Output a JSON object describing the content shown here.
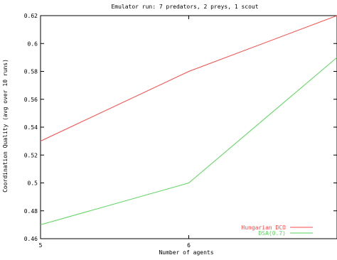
{
  "chart_data": {
    "type": "line",
    "title": "Emulator run: 7 predators, 2 preys, 1 scout",
    "xlabel": "Number of agents",
    "ylabel": "Coordination Quality (avg over 10 runs)",
    "x": [
      5,
      6,
      7
    ],
    "x_ticks": [
      5,
      6
    ],
    "xlim": [
      5,
      7
    ],
    "y_ticks": [
      0.46,
      0.48,
      0.5,
      0.52,
      0.54,
      0.56,
      0.58,
      0.6,
      0.62
    ],
    "y_tick_labels": [
      "0.46",
      "0.48",
      "0.5",
      "0.52",
      "0.54",
      "0.56",
      "0.58",
      "0.6",
      "0.62"
    ],
    "ylim": [
      0.46,
      0.62
    ],
    "grid": false,
    "legend_position": "bottom-right",
    "series": [
      {
        "name": "Hungarian DCO",
        "color": "#ff4a4a",
        "values": [
          0.53,
          0.58,
          0.62
        ]
      },
      {
        "name": "DSA(0.7)",
        "color": "#5ad65a",
        "values": [
          0.47,
          0.5,
          0.59
        ]
      }
    ]
  }
}
